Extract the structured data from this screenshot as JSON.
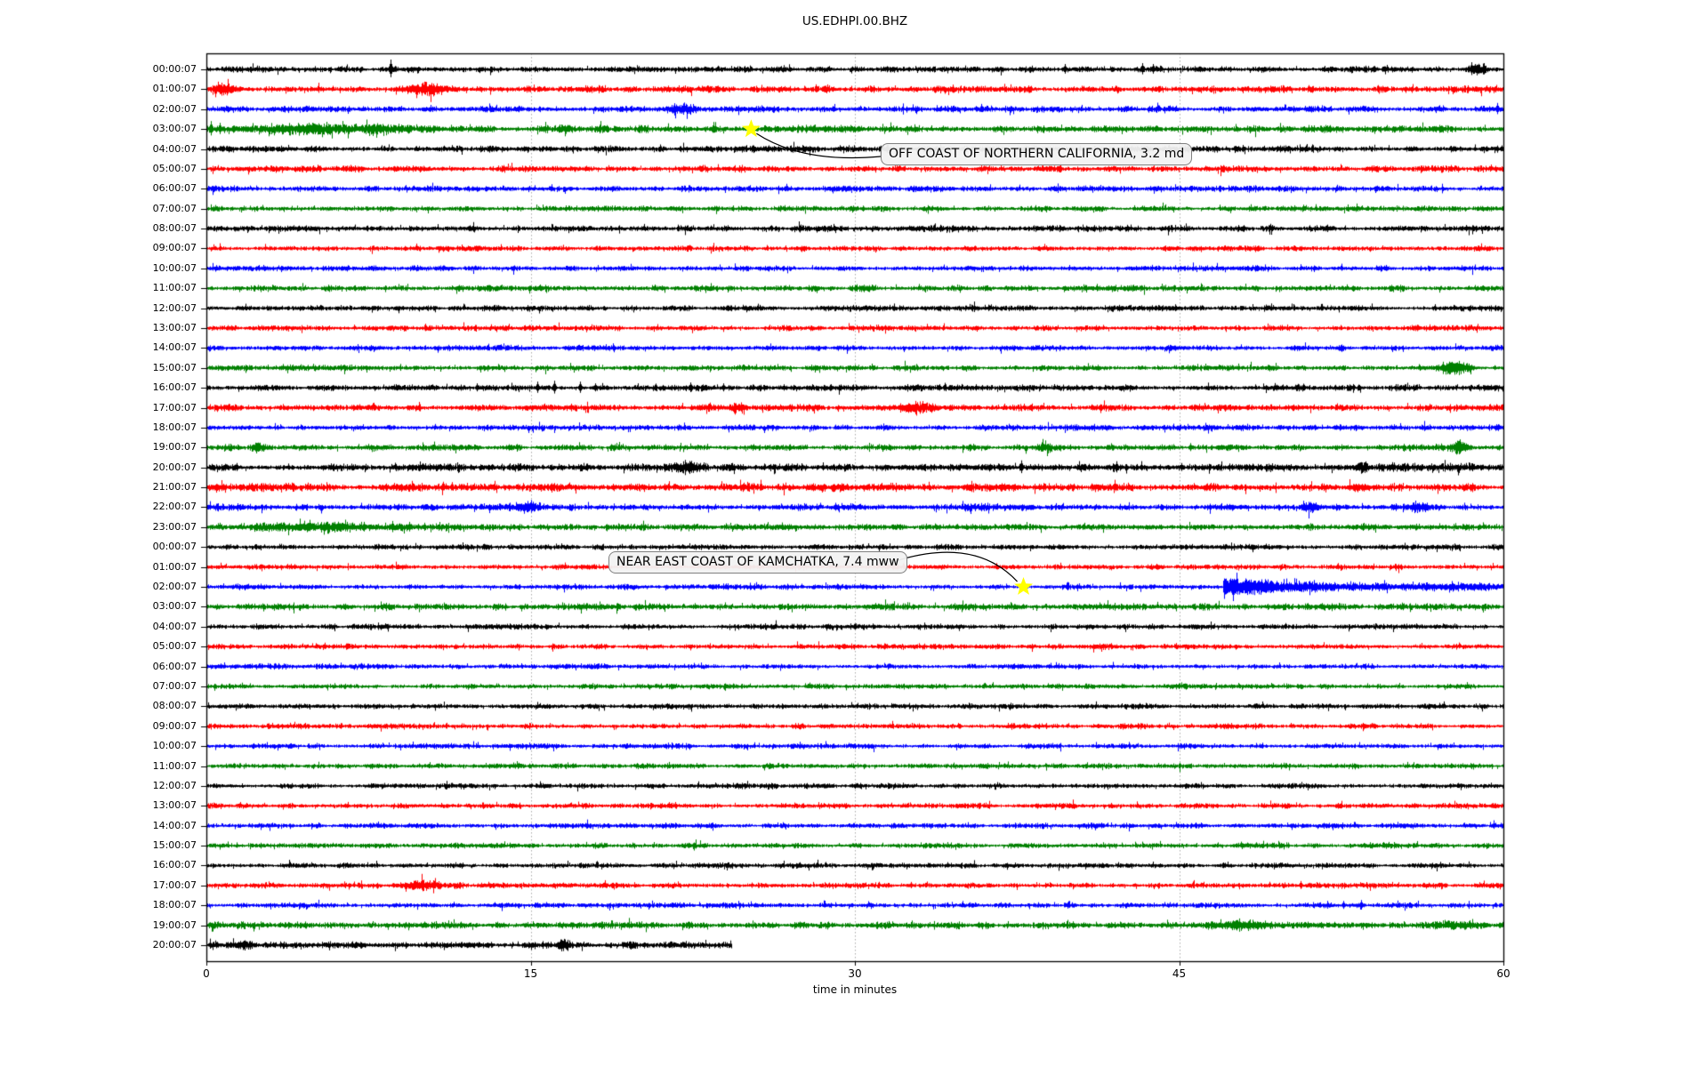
{
  "colors": {
    "black": "#000000",
    "red": "#ff0000",
    "blue": "#0000ff",
    "green": "#008000",
    "grid": "#aaaaaa",
    "frame": "#000000",
    "star": "#ffff00",
    "annotation_bg": "#f2f2f2",
    "annotation_border": "#7f7f7f"
  },
  "annotations": [
    {
      "text": "OFF COAST OF NORTHERN CALIFORNIA, 3.2 md",
      "row_index": 3,
      "minute": 25.2
    },
    {
      "text": "NEAR EAST COAST OF KAMCHATKA, 7.4 mww",
      "row_index": 26,
      "minute": 37.8
    }
  ],
  "chart_data": {
    "type": "line",
    "subtype": "helicorder-dayplot",
    "title": "US.EDHPI.00.BHZ",
    "xlabel": "time in minutes",
    "x_range": [
      0,
      60
    ],
    "minutes_per_line": 60,
    "grid": "vertical dotted at 15/30/45",
    "x_ticks": [
      {
        "label": "0",
        "minute": 0
      },
      {
        "label": "15",
        "minute": 15
      },
      {
        "label": "30",
        "minute": 30
      },
      {
        "label": "45",
        "minute": 45
      },
      {
        "label": "60",
        "minute": 60
      }
    ],
    "rows": [
      {
        "label": "00:00:07",
        "color": "black",
        "base": 2.2,
        "end": 60,
        "events": [
          {
            "type": "spike",
            "m": 8.5,
            "a": 11,
            "dir": "both"
          },
          {
            "type": "spike",
            "m": 39.7,
            "a": 6,
            "dir": "both"
          },
          {
            "type": "spike",
            "m": 43.3,
            "a": 7,
            "dir": "both"
          },
          {
            "type": "spike",
            "m": 43.8,
            "a": 6,
            "dir": "both"
          },
          {
            "type": "burst",
            "m0": 58.2,
            "m1": 59.4,
            "a": 5
          },
          {
            "type": "spike",
            "m": 58.5,
            "a": 8,
            "dir": "both"
          },
          {
            "type": "spike",
            "m": 59.1,
            "a": 7,
            "dir": "both"
          }
        ]
      },
      {
        "label": "01:00:07",
        "color": "red",
        "base": 2.4,
        "end": 60,
        "events": [
          {
            "type": "burst",
            "m0": 0.0,
            "m1": 1.6,
            "a": 5
          },
          {
            "type": "spike",
            "m": 0.4,
            "a": 9,
            "dir": "down"
          },
          {
            "type": "burst",
            "m0": 9.2,
            "m1": 11.5,
            "a": 5
          },
          {
            "type": "spike",
            "m": 9.7,
            "a": 10,
            "dir": "down"
          },
          {
            "type": "spike",
            "m": 10.4,
            "a": 7,
            "dir": "both"
          },
          {
            "type": "spike",
            "m": 14.9,
            "a": 4,
            "dir": "both"
          }
        ]
      },
      {
        "label": "02:00:07",
        "color": "blue",
        "base": 2.2,
        "end": 60,
        "events": [
          {
            "type": "burst",
            "m0": 20.9,
            "m1": 23.2,
            "a": 4
          },
          {
            "type": "spike",
            "m": 17.5,
            "a": 3,
            "dir": "both"
          },
          {
            "type": "spike",
            "m": 59.7,
            "a": 7,
            "dir": "both"
          }
        ]
      },
      {
        "label": "03:00:07",
        "color": "green",
        "base": 2.6,
        "end": 60,
        "events": [
          {
            "type": "burst",
            "m0": 0,
            "m1": 12,
            "a": 3.2
          },
          {
            "type": "spike",
            "m": 0.2,
            "a": 9,
            "dir": "both"
          },
          {
            "type": "spike",
            "m": 0.6,
            "a": 7,
            "dir": "both"
          },
          {
            "type": "spike",
            "m": 10.5,
            "a": 4,
            "dir": "both"
          },
          {
            "type": "spike",
            "m": 12.7,
            "a": 4,
            "dir": "both"
          },
          {
            "type": "burst",
            "m0": 16,
            "m1": 17,
            "a": 3
          }
        ]
      },
      {
        "label": "04:00:07",
        "color": "black",
        "base": 2.2,
        "end": 60,
        "events": []
      },
      {
        "label": "05:00:07",
        "color": "red",
        "base": 2.2,
        "end": 60,
        "events": []
      },
      {
        "label": "06:00:07",
        "color": "blue",
        "base": 2.1,
        "end": 60,
        "events": []
      },
      {
        "label": "07:00:07",
        "color": "green",
        "base": 2.0,
        "end": 60,
        "events": []
      },
      {
        "label": "08:00:07",
        "color": "black",
        "base": 2.2,
        "end": 60,
        "events": []
      },
      {
        "label": "09:00:07",
        "color": "red",
        "base": 2.0,
        "end": 60,
        "events": []
      },
      {
        "label": "10:00:07",
        "color": "blue",
        "base": 2.0,
        "end": 60,
        "events": []
      },
      {
        "label": "11:00:07",
        "color": "green",
        "base": 2.2,
        "end": 60,
        "events": []
      },
      {
        "label": "12:00:07",
        "color": "black",
        "base": 2.0,
        "end": 60,
        "events": []
      },
      {
        "label": "13:00:07",
        "color": "red",
        "base": 2.0,
        "end": 60,
        "events": []
      },
      {
        "label": "14:00:07",
        "color": "blue",
        "base": 2.0,
        "end": 60,
        "events": []
      },
      {
        "label": "15:00:07",
        "color": "green",
        "base": 2.0,
        "end": 60,
        "events": [
          {
            "type": "burst",
            "m0": 56.6,
            "m1": 58.8,
            "a": 6
          },
          {
            "type": "spike",
            "m": 57.2,
            "a": 7,
            "dir": "both"
          },
          {
            "type": "spike",
            "m": 59.6,
            "a": 3,
            "dir": "both"
          }
        ]
      },
      {
        "label": "16:00:07",
        "color": "black",
        "base": 2.2,
        "end": 60,
        "events": [
          {
            "type": "spike",
            "m": 12.5,
            "a": 5,
            "dir": "both"
          },
          {
            "type": "spike",
            "m": 15.3,
            "a": 7,
            "dir": "both"
          },
          {
            "type": "spike",
            "m": 16.1,
            "a": 8,
            "dir": "both"
          },
          {
            "type": "spike",
            "m": 17.3,
            "a": 7,
            "dir": "both"
          },
          {
            "type": "spike",
            "m": 18.0,
            "a": 5,
            "dir": "both"
          },
          {
            "type": "spike",
            "m": 22.4,
            "a": 6,
            "dir": "both"
          },
          {
            "type": "spike",
            "m": 23.9,
            "a": 5,
            "dir": "both"
          },
          {
            "type": "spike",
            "m": 26.7,
            "a": 4,
            "dir": "both"
          },
          {
            "type": "spike",
            "m": 28.9,
            "a": 4,
            "dir": "both"
          },
          {
            "type": "spike",
            "m": 30.4,
            "a": 3,
            "dir": "both"
          },
          {
            "type": "spike",
            "m": 33.9,
            "a": 4,
            "dir": "both"
          },
          {
            "type": "spike",
            "m": 35.6,
            "a": 4,
            "dir": "both"
          },
          {
            "type": "spike",
            "m": 49.0,
            "a": 3,
            "dir": "both"
          }
        ]
      },
      {
        "label": "17:00:07",
        "color": "red",
        "base": 2.3,
        "end": 60,
        "events": [
          {
            "type": "spike",
            "m": 19.8,
            "a": 3,
            "dir": "both"
          },
          {
            "type": "burst",
            "m0": 24.0,
            "m1": 25.2,
            "a": 4
          },
          {
            "type": "spike",
            "m": 27.6,
            "a": 4,
            "dir": "both"
          },
          {
            "type": "burst",
            "m0": 31.7,
            "m1": 34.3,
            "a": 4
          },
          {
            "type": "spike",
            "m": 32.1,
            "a": 5,
            "dir": "both"
          },
          {
            "type": "spike",
            "m": 33.6,
            "a": 5,
            "dir": "both"
          }
        ]
      },
      {
        "label": "18:00:07",
        "color": "blue",
        "base": 2.0,
        "end": 60,
        "events": [
          {
            "type": "spike",
            "m": 14.9,
            "a": 6,
            "dir": "down"
          },
          {
            "type": "spike",
            "m": 25.8,
            "a": 6,
            "dir": "down"
          }
        ]
      },
      {
        "label": "19:00:07",
        "color": "green",
        "base": 2.2,
        "end": 60,
        "events": [
          {
            "type": "burst",
            "m0": 1.9,
            "m1": 2.9,
            "a": 4
          },
          {
            "type": "spike",
            "m": 37.9,
            "a": 7,
            "dir": "down"
          },
          {
            "type": "burst",
            "m0": 38.2,
            "m1": 39.5,
            "a": 4
          },
          {
            "type": "spike",
            "m": 45.5,
            "a": 5,
            "dir": "both"
          },
          {
            "type": "burst",
            "m0": 57.5,
            "m1": 58.5,
            "a": 5
          }
        ]
      },
      {
        "label": "20:00:07",
        "color": "black",
        "base": 2.7,
        "end": 60,
        "events": [
          {
            "type": "spike",
            "m": 1.4,
            "a": 5,
            "dir": "both"
          },
          {
            "type": "burst",
            "m0": 21.0,
            "m1": 23.5,
            "a": 3.5
          },
          {
            "type": "spike",
            "m": 37.7,
            "a": 8,
            "dir": "both"
          },
          {
            "type": "spike",
            "m": 42.1,
            "a": 7,
            "dir": "both"
          },
          {
            "type": "spike",
            "m": 45.1,
            "a": 5,
            "dir": "both"
          },
          {
            "type": "burst",
            "m0": 53.0,
            "m1": 54.0,
            "a": 5
          }
        ]
      },
      {
        "label": "21:00:07",
        "color": "red",
        "base": 2.9,
        "end": 60,
        "events": [
          {
            "type": "spike",
            "m": 0.8,
            "a": 4,
            "dir": "both"
          },
          {
            "type": "spike",
            "m": 11.0,
            "a": 4,
            "dir": "both"
          },
          {
            "type": "spike",
            "m": 25.0,
            "a": 4,
            "dir": "both"
          },
          {
            "type": "spike",
            "m": 38.5,
            "a": 4,
            "dir": "both"
          }
        ]
      },
      {
        "label": "22:00:07",
        "color": "blue",
        "base": 2.4,
        "end": 60,
        "events": [
          {
            "type": "spike",
            "m": 0.5,
            "a": 4,
            "dir": "both"
          },
          {
            "type": "spike",
            "m": 5.3,
            "a": 7,
            "dir": "down"
          },
          {
            "type": "burst",
            "m0": 13.8,
            "m1": 15.9,
            "a": 3.5
          },
          {
            "type": "spike",
            "m": 28.4,
            "a": 5,
            "dir": "up"
          },
          {
            "type": "spike",
            "m": 29.1,
            "a": 5,
            "dir": "up"
          },
          {
            "type": "burst",
            "m0": 50.5,
            "m1": 51.6,
            "a": 4.5
          },
          {
            "type": "burst",
            "m0": 55.4,
            "m1": 57.0,
            "a": 4
          }
        ]
      },
      {
        "label": "23:00:07",
        "color": "green",
        "base": 2.4,
        "end": 60,
        "events": [
          {
            "type": "spike",
            "m": 0.6,
            "a": 5,
            "dir": "up"
          },
          {
            "type": "burst",
            "m0": 0,
            "m1": 11,
            "a": 2.8
          },
          {
            "type": "spike",
            "m": 6.5,
            "a": 6,
            "dir": "both"
          },
          {
            "type": "spike",
            "m": 7.3,
            "a": 6,
            "dir": "both"
          },
          {
            "type": "spike",
            "m": 8.6,
            "a": 7,
            "dir": "both"
          },
          {
            "type": "spike",
            "m": 9.4,
            "a": 6,
            "dir": "both"
          },
          {
            "type": "spike",
            "m": 10.1,
            "a": 5,
            "dir": "both"
          }
        ]
      },
      {
        "label": "00:00:07",
        "color": "black",
        "base": 1.9,
        "end": 60,
        "events": []
      },
      {
        "label": "01:00:07",
        "color": "red",
        "base": 1.9,
        "end": 60,
        "events": []
      },
      {
        "label": "02:00:07",
        "color": "blue",
        "base": 2.0,
        "end": 60,
        "events": [
          {
            "type": "quake",
            "m0": 47.0,
            "a": 10,
            "tau": 2.0,
            "tail": 2.0
          },
          {
            "type": "spike",
            "m": 47.5,
            "a": 16,
            "dir": "down"
          }
        ]
      },
      {
        "label": "03:00:07",
        "color": "green",
        "base": 2.3,
        "end": 60,
        "events": []
      },
      {
        "label": "04:00:07",
        "color": "black",
        "base": 1.9,
        "end": 60,
        "events": []
      },
      {
        "label": "05:00:07",
        "color": "red",
        "base": 1.9,
        "end": 60,
        "events": []
      },
      {
        "label": "06:00:07",
        "color": "blue",
        "base": 1.9,
        "end": 60,
        "events": []
      },
      {
        "label": "07:00:07",
        "color": "green",
        "base": 1.9,
        "end": 60,
        "events": []
      },
      {
        "label": "08:00:07",
        "color": "black",
        "base": 1.9,
        "end": 60,
        "events": []
      },
      {
        "label": "09:00:07",
        "color": "red",
        "base": 1.9,
        "end": 60,
        "events": []
      },
      {
        "label": "10:00:07",
        "color": "blue",
        "base": 1.9,
        "end": 60,
        "events": []
      },
      {
        "label": "11:00:07",
        "color": "green",
        "base": 1.9,
        "end": 60,
        "events": []
      },
      {
        "label": "12:00:07",
        "color": "black",
        "base": 1.9,
        "end": 60,
        "events": []
      },
      {
        "label": "13:00:07",
        "color": "red",
        "base": 1.9,
        "end": 60,
        "events": []
      },
      {
        "label": "14:00:07",
        "color": "blue",
        "base": 1.9,
        "end": 60,
        "events": []
      },
      {
        "label": "15:00:07",
        "color": "green",
        "base": 1.9,
        "end": 60,
        "events": []
      },
      {
        "label": "16:00:07",
        "color": "black",
        "base": 1.9,
        "end": 60,
        "events": []
      },
      {
        "label": "17:00:07",
        "color": "red",
        "base": 2.0,
        "end": 60,
        "events": [
          {
            "type": "burst",
            "m0": 8.6,
            "m1": 11.4,
            "a": 5
          },
          {
            "type": "spike",
            "m": 9.2,
            "a": 7,
            "dir": "down"
          },
          {
            "type": "spike",
            "m": 32.6,
            "a": 4,
            "dir": "both"
          },
          {
            "type": "spike",
            "m": 50.6,
            "a": 5,
            "dir": "both"
          }
        ]
      },
      {
        "label": "18:00:07",
        "color": "blue",
        "base": 1.9,
        "end": 60,
        "events": [
          {
            "type": "spike",
            "m": 52.6,
            "a": 5,
            "dir": "both"
          },
          {
            "type": "spike",
            "m": 53.4,
            "a": 6,
            "dir": "both"
          }
        ]
      },
      {
        "label": "19:00:07",
        "color": "green",
        "base": 2.4,
        "end": 60,
        "events": [
          {
            "type": "spike",
            "m": 0.3,
            "a": 7,
            "dir": "down"
          },
          {
            "type": "burst",
            "m0": 46.3,
            "m1": 49.3,
            "a": 3.5
          },
          {
            "type": "burst",
            "m0": 56.9,
            "m1": 58.4,
            "a": 3.5
          }
        ]
      },
      {
        "label": "20:00:07",
        "color": "black",
        "base": 2.5,
        "end": 24.3,
        "events": [
          {
            "type": "burst",
            "m0": 1.0,
            "m1": 2.5,
            "a": 3.5
          },
          {
            "type": "burst",
            "m0": 16.1,
            "m1": 17.0,
            "a": 3.5
          }
        ]
      }
    ]
  }
}
